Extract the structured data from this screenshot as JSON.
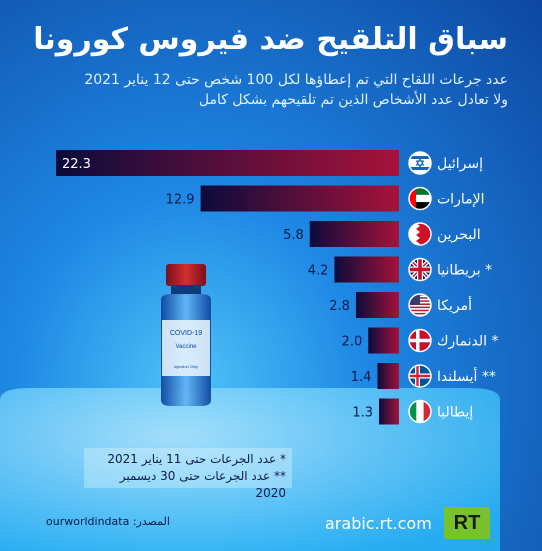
{
  "title": "سباق التلقيح ضد فيروس كورونا",
  "subtitle_line1": "عدد جرعات اللقاح التي تم إعطاؤها لكل 100 شخص حتى 12 يناير 2021",
  "subtitle_line2": "ولا تعادل عدد الأشخاص الذين تم تلقيحهم بشكل كامل",
  "chart_data": {
    "type": "bar",
    "orientation": "horizontal",
    "categories": [
      "إسرائيل",
      "الإمارات",
      "البحرين",
      "* بريطانيا",
      "أمريكا",
      "* الدنمارك",
      "** أيسلندا",
      "إيطاليا"
    ],
    "values": [
      22.3,
      12.9,
      5.8,
      4.2,
      2.8,
      2.0,
      1.4,
      1.3
    ],
    "value_labels": [
      "22.3",
      "12.9",
      "5.8",
      "4.2",
      "2.8",
      "2.0",
      "1.4",
      "1.3"
    ],
    "flags": [
      "israel",
      "uae",
      "bahrain",
      "uk",
      "usa",
      "denmark",
      "iceland",
      "italy"
    ],
    "colors": {
      "bar_start": "#0b0b3b",
      "bar_end": "#a6123a"
    }
  },
  "notes": {
    "line1": "* عدد الجرعات حتى 11 يناير 2021",
    "line2": "** عدد الجرعات حتى 30 ديسمبر 2020"
  },
  "source": "المصدر: ourworldindata",
  "website": "arabic.rt.com",
  "logo": "RT",
  "vaccine_label": {
    "brand": "COVID-19",
    "name": "Vaccine",
    "note": "Injection Only"
  }
}
